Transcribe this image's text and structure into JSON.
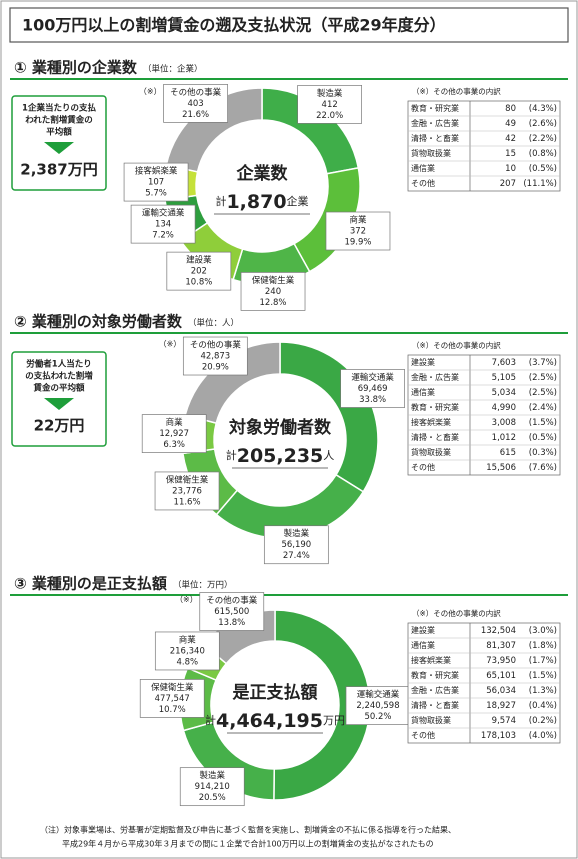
{
  "title": "100万円以上の割増賃金の遡及支払状況（平成29年度分）",
  "chart_data": [
    {
      "type": "pie",
      "title": "① 業種別の企業数",
      "unit": "（単位：企業）",
      "categories": [
        "製造業",
        "商業",
        "保健衛生業",
        "建設業",
        "運輸交通業",
        "接客娯楽業",
        "その他の事業"
      ],
      "values": [
        412,
        372,
        240,
        202,
        134,
        107,
        403
      ],
      "value_labels": [
        "412",
        "372",
        "240",
        "202",
        "134",
        "107",
        "403"
      ],
      "percent_labels": [
        "22.0%",
        "19.9%",
        "12.8%",
        "10.8%",
        "7.2%",
        "5.7%",
        "21.6%"
      ],
      "colors": [
        "#3fae49",
        "#5cbf3a",
        "#4fb548",
        "#8fce3a",
        "#2e9e3e",
        "#c5e13a",
        "#a6a6a6"
      ],
      "note_marker": "（※）",
      "center_label": "企業数",
      "total_prefix": "計",
      "total": "1,870",
      "total_unit": "企業",
      "callout": {
        "lines": [
          "1企業当たりの支払",
          "われた割増賃金の",
          "平均額"
        ],
        "value": "2,387万円"
      },
      "breakdown": {
        "title": "（※）その他の事業の内訳",
        "rows": [
          [
            "教育・研究業",
            "80",
            "(4.3%)"
          ],
          [
            "金融・広告業",
            "49",
            "(2.6%)"
          ],
          [
            "清掃・と畜業",
            "42",
            "(2.2%)"
          ],
          [
            "貨物取扱業",
            "15",
            "(0.8%)"
          ],
          [
            "通信業",
            "10",
            "(0.5%)"
          ],
          [
            "その他",
            "207",
            "(11.1%)"
          ]
        ]
      }
    },
    {
      "type": "pie",
      "title": "② 業種別の対象労働者数",
      "unit": "（単位：人）",
      "categories": [
        "運輸交通業",
        "製造業",
        "保健衛生業",
        "商業",
        "その他の事業"
      ],
      "values": [
        69469,
        56190,
        23776,
        12927,
        42873
      ],
      "value_labels": [
        "69,469",
        "56,190",
        "23,776",
        "12,927",
        "42,873"
      ],
      "percent_labels": [
        "33.8%",
        "27.4%",
        "11.6%",
        "6.3%",
        "20.9%"
      ],
      "colors": [
        "#3aa845",
        "#46b04a",
        "#5cbb47",
        "#7ac943",
        "#a6a6a6"
      ],
      "note_marker": "（※）",
      "center_label": "対象労働者数",
      "total_prefix": "計",
      "total": "205,235",
      "total_unit": "人",
      "callout": {
        "lines": [
          "労働者1人当たり",
          "の支払われた割増",
          "賃金の平均額"
        ],
        "value": "22万円"
      },
      "breakdown": {
        "title": "（※）その他の事業の内訳",
        "rows": [
          [
            "建設業",
            "7,603",
            "(3.7%)"
          ],
          [
            "金融・広告業",
            "5,105",
            "(2.5%)"
          ],
          [
            "通信業",
            "5,034",
            "(2.5%)"
          ],
          [
            "教育・研究業",
            "4,990",
            "(2.4%)"
          ],
          [
            "接客娯楽業",
            "3,008",
            "(1.5%)"
          ],
          [
            "清掃・と畜業",
            "1,012",
            "(0.5%)"
          ],
          [
            "貨物取扱業",
            "615",
            "(0.3%)"
          ],
          [
            "その他",
            "15,506",
            "(7.6%)"
          ]
        ]
      }
    },
    {
      "type": "pie",
      "title": "③ 業種別の是正支払額",
      "unit": "（単位：万円）",
      "categories": [
        "運輸交通業",
        "製造業",
        "保健衛生業",
        "商業",
        "その他の事業"
      ],
      "values": [
        2240598,
        914210,
        477547,
        216340,
        615500
      ],
      "value_labels": [
        "2,240,598",
        "914,210",
        "477,547",
        "216,340",
        "615,500"
      ],
      "percent_labels": [
        "50.2%",
        "20.5%",
        "10.7%",
        "4.8%",
        "13.8%"
      ],
      "colors": [
        "#3aa845",
        "#46b04a",
        "#5cbb47",
        "#7ac943",
        "#a6a6a6"
      ],
      "note_marker": "（※）",
      "center_label": "是正支払額",
      "total_prefix": "計",
      "total": "4,464,195",
      "total_unit": "万円",
      "breakdown": {
        "title": "（※）その他の事業の内訳",
        "rows": [
          [
            "建設業",
            "132,504",
            "(3.0%)"
          ],
          [
            "通信業",
            "81,307",
            "(1.8%)"
          ],
          [
            "接客娯楽業",
            "73,950",
            "(1.7%)"
          ],
          [
            "教育・研究業",
            "65,101",
            "(1.5%)"
          ],
          [
            "金融・広告業",
            "56,034",
            "(1.3%)"
          ],
          [
            "清掃・と畜業",
            "18,927",
            "(0.4%)"
          ],
          [
            "貨物取扱業",
            "9,574",
            "(0.2%)"
          ],
          [
            "その他",
            "178,103",
            "(4.0%)"
          ]
        ]
      }
    }
  ],
  "note": [
    "（注）対象事業場は、労基署が定期監督及び申告に基づく監督を実施し、割増賃金の不払に係る指導を行った結果、",
    "平成29年４月から平成30年３月までの間に１企業で合計100万円以上の割増賃金の支払がなされたもの"
  ]
}
